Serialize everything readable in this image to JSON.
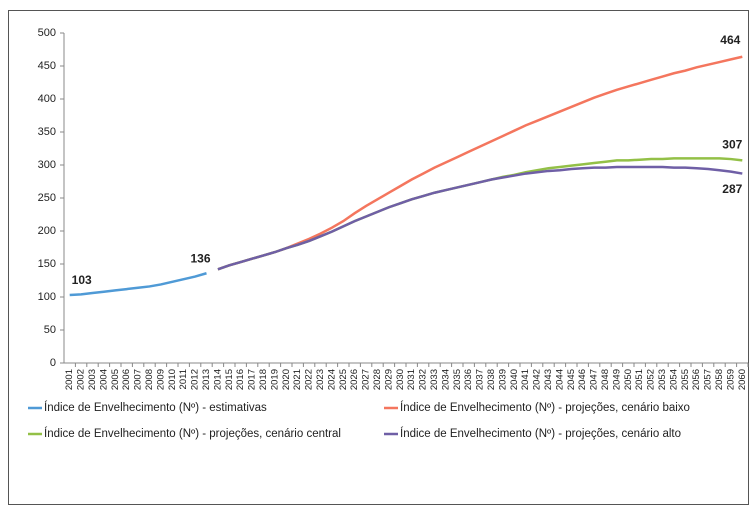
{
  "chart_data": {
    "type": "line",
    "categories": [
      "2001",
      "2002",
      "2003",
      "2004",
      "2005",
      "2006",
      "2007",
      "2008",
      "2009",
      "2010",
      "2011",
      "2012",
      "2013",
      "2014",
      "2015",
      "2016",
      "2017",
      "2018",
      "2019",
      "2020",
      "2021",
      "2022",
      "2023",
      "2024",
      "2025",
      "2026",
      "2027",
      "2028",
      "2029",
      "2030",
      "2031",
      "2032",
      "2033",
      "2034",
      "2035",
      "2036",
      "2037",
      "2038",
      "2039",
      "2040",
      "2041",
      "2042",
      "2043",
      "2044",
      "2045",
      "2046",
      "2047",
      "2048",
      "2049",
      "2050",
      "2051",
      "2052",
      "2053",
      "2054",
      "2055",
      "2056",
      "2057",
      "2058",
      "2059",
      "2060"
    ],
    "series": [
      {
        "name": "Índice de Envelhecimento (Nº) - estimativas",
        "color": "#4f9ad6",
        "values": [
          103,
          104,
          106,
          108,
          110,
          112,
          114,
          116,
          119,
          123,
          127,
          131,
          136,
          null,
          null,
          null,
          null,
          null,
          null,
          null,
          null,
          null,
          null,
          null,
          null,
          null,
          null,
          null,
          null,
          null,
          null,
          null,
          null,
          null,
          null,
          null,
          null,
          null,
          null,
          null,
          null,
          null,
          null,
          null,
          null,
          null,
          null,
          null,
          null,
          null,
          null,
          null,
          null,
          null,
          null,
          null,
          null,
          null,
          null,
          null
        ]
      },
      {
        "name": "Índice de Envelhecimento (Nº) - projeções, cenário baixo",
        "color": "#f4765e",
        "values": [
          null,
          null,
          null,
          null,
          null,
          null,
          null,
          null,
          null,
          null,
          null,
          null,
          null,
          142,
          148,
          153,
          158,
          163,
          168,
          174,
          181,
          188,
          196,
          205,
          215,
          227,
          238,
          248,
          258,
          268,
          278,
          287,
          296,
          304,
          312,
          320,
          328,
          336,
          344,
          352,
          360,
          367,
          374,
          381,
          388,
          395,
          402,
          408,
          414,
          419,
          424,
          429,
          434,
          439,
          443,
          448,
          452,
          456,
          460,
          464
        ]
      },
      {
        "name": "Índice de Envelhecimento (Nº) - projeções, cenário central",
        "color": "#93c047",
        "values": [
          null,
          null,
          null,
          null,
          null,
          null,
          null,
          null,
          null,
          null,
          null,
          null,
          null,
          142,
          148,
          153,
          158,
          163,
          168,
          174,
          179,
          185,
          192,
          199,
          207,
          215,
          222,
          229,
          236,
          242,
          248,
          253,
          258,
          262,
          266,
          270,
          274,
          278,
          282,
          285,
          289,
          292,
          295,
          297,
          299,
          301,
          303,
          305,
          307,
          307,
          308,
          309,
          309,
          310,
          310,
          310,
          310,
          310,
          309,
          307
        ]
      },
      {
        "name": "Índice de Envelhecimento (Nº) - projeções, cenário alto",
        "color": "#6f5fa6",
        "values": [
          null,
          null,
          null,
          null,
          null,
          null,
          null,
          null,
          null,
          null,
          null,
          null,
          null,
          142,
          148,
          153,
          158,
          163,
          168,
          174,
          179,
          185,
          192,
          199,
          207,
          215,
          222,
          229,
          236,
          242,
          248,
          253,
          258,
          262,
          266,
          270,
          274,
          278,
          281,
          284,
          287,
          289,
          291,
          292,
          294,
          295,
          296,
          296,
          297,
          297,
          297,
          297,
          297,
          296,
          296,
          295,
          294,
          292,
          290,
          287
        ]
      }
    ],
    "ylim": [
      0,
      500
    ],
    "yticks": [
      0,
      50,
      100,
      150,
      200,
      250,
      300,
      350,
      400,
      450,
      500
    ],
    "grid": false,
    "legend": "bottom"
  }
}
